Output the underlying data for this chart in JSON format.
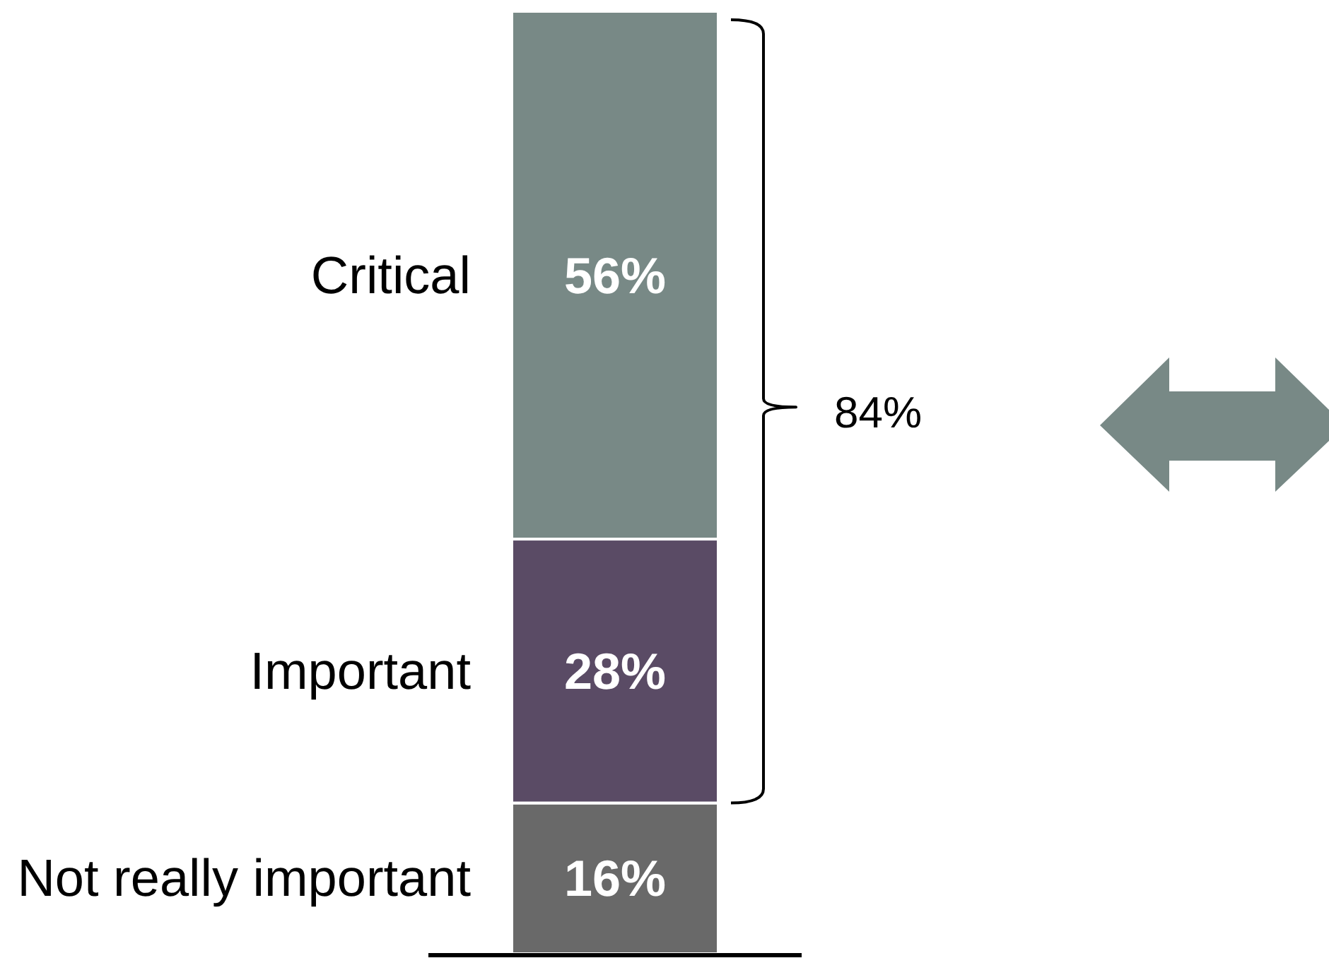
{
  "chart_data": {
    "type": "bar",
    "stacked": true,
    "categories": [
      null
    ],
    "series": [
      {
        "name": "Not really important",
        "color": "#696969",
        "values": [
          16
        ],
        "value_labels": [
          "16%"
        ]
      },
      {
        "name": "Important",
        "color": "#5a4b65",
        "values": [
          28
        ],
        "value_labels": [
          "28%"
        ]
      },
      {
        "name": "Critical",
        "color": "#788986",
        "values": [
          56
        ],
        "value_labels": [
          "56%"
        ]
      }
    ],
    "annotations": [
      "84%"
    ]
  }
}
